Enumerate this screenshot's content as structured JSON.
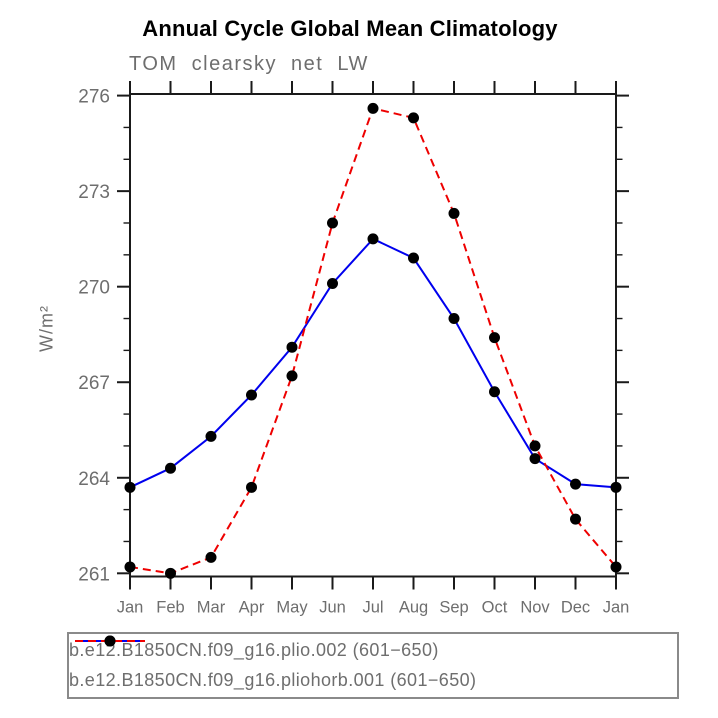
{
  "header": {
    "title": "Annual Cycle Global Mean Climatology",
    "subtitle": "TOM clearsky net LW"
  },
  "chart_data": {
    "type": "line",
    "title": "Annual Cycle Global Mean Climatology",
    "subtitle": "TOM clearsky net LW",
    "ylabel": "W/m²",
    "xlabel": "",
    "categories": [
      "Jan",
      "Feb",
      "Mar",
      "Apr",
      "May",
      "Jun",
      "Jul",
      "Aug",
      "Sep",
      "Oct",
      "Nov",
      "Dec",
      "Jan"
    ],
    "y_ticks": [
      261,
      264,
      267,
      270,
      273,
      276
    ],
    "y_minor_tick_step": 1,
    "ylim": [
      260.9,
      276.05
    ],
    "grid": false,
    "legend_position": "bottom",
    "marker": "filled-circle",
    "marker_color": "#000000",
    "axis_color": "#1a1a1a",
    "label_color": "#6e6e6e",
    "series": [
      {
        "name": "b.e12.B1850CN.f09_g16.plio.002 (601−650)",
        "color": "#0000ee",
        "style": "solid",
        "values": [
          263.7,
          264.3,
          265.3,
          266.6,
          268.1,
          270.1,
          271.5,
          270.9,
          269.0,
          266.7,
          264.6,
          263.8,
          263.7
        ]
      },
      {
        "name": "b.e12.B1850CN.f09_g16.pliohorb.001 (601−650)",
        "color": "#ee0000",
        "style": "dashed",
        "values": [
          261.2,
          261.0,
          261.5,
          263.7,
          267.2,
          272.0,
          275.6,
          275.3,
          272.3,
          268.4,
          265.0,
          262.7,
          261.2
        ]
      }
    ]
  }
}
